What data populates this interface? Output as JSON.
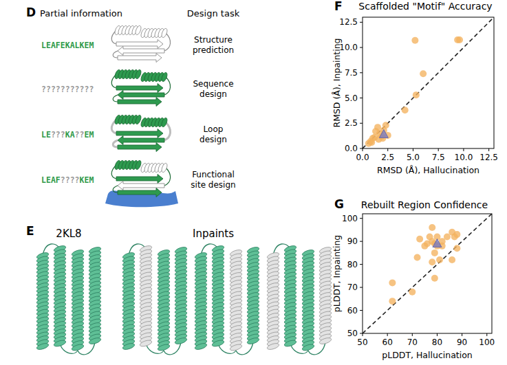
{
  "panel_d": {
    "label": "D",
    "headers": [
      "Partial information",
      "Design task"
    ],
    "rows": [
      {
        "sequence": "LEAFEKALKEM",
        "task": "Structure prediction"
      },
      {
        "sequence": "???????????",
        "task": "Sequence design"
      },
      {
        "sequence": "LE???KA??EM",
        "task": "Loop design"
      },
      {
        "sequence": "LEAF????KEM",
        "task": "Functional site design"
      }
    ]
  },
  "panel_e": {
    "label": "E",
    "native": "2KL8",
    "inpaints": "Inpaints"
  },
  "chart_data": [
    {
      "panel": "F",
      "type": "scatter",
      "title": "Scaffolded \"Motif\" Accuracy",
      "x_label": "RMSD (Å), Hallucination",
      "y_label": "RMSD (Å), Inpainting",
      "xlim": [
        0,
        13
      ],
      "ylim": [
        0,
        13
      ],
      "xticks": [
        {
          "value": 0,
          "label": "0.0"
        },
        {
          "value": 2.5,
          "label": "2.5"
        },
        {
          "value": 5,
          "label": "5.0"
        },
        {
          "value": 7.5,
          "label": "7.5"
        },
        {
          "value": 10,
          "label": "10.0"
        },
        {
          "value": 12.5,
          "label": "12.5"
        }
      ],
      "yticks": [
        {
          "value": 0,
          "label": "0.0"
        },
        {
          "value": 2.5,
          "label": "2.5"
        },
        {
          "value": 5,
          "label": "5.0"
        },
        {
          "value": 7.5,
          "label": "7.5"
        },
        {
          "value": 10,
          "label": "10.0"
        },
        {
          "value": 12.5,
          "label": "12.5"
        }
      ],
      "grid": false,
      "series": [
        {
          "color": "#f3b25f",
          "marker": "circle",
          "x": [
            5.2,
            9.4,
            9.6,
            6.0,
            5.3,
            4.2,
            2.3,
            2.5,
            1.5,
            1.3,
            1.7,
            1.0,
            0.6,
            0.8,
            1.9,
            2.1,
            1.2,
            1.6,
            0.9,
            2.0
          ],
          "values": [
            10.7,
            10.75,
            10.75,
            7.4,
            5.3,
            3.8,
            2.3,
            1.3,
            2.1,
            1.7,
            1.5,
            1.0,
            0.5,
            0.7,
            1.2,
            1.8,
            1.1,
            0.9,
            0.6,
            1.0
          ]
        },
        {
          "color": "#7679c2",
          "marker": "triangle",
          "x": [
            2.1
          ],
          "values": [
            1.4
          ]
        }
      ]
    },
    {
      "panel": "G",
      "type": "scatter",
      "title": "Rebuilt Region Confidence",
      "x_label": "pLDDT, Hallucination",
      "y_label": "pLDDT, Inpainting",
      "xlim": [
        50,
        102
      ],
      "ylim": [
        50,
        102
      ],
      "xticks": [
        50,
        60,
        70,
        80,
        90,
        100
      ],
      "yticks": [
        50,
        60,
        70,
        80,
        90,
        100
      ],
      "grid": false,
      "series": [
        {
          "color": "#f3b25f",
          "marker": "circle",
          "x": [
            62,
            62,
            70,
            72,
            73,
            75,
            76,
            77,
            78,
            78,
            79,
            78,
            79,
            80,
            80,
            81,
            82,
            82,
            84,
            86,
            86,
            87,
            88,
            88,
            79
          ],
          "values": [
            72,
            64,
            68,
            83,
            91,
            88,
            89,
            92,
            96,
            90,
            89,
            81,
            74,
            92,
            88,
            82,
            90,
            88,
            92,
            94,
            82,
            92,
            93,
            87,
            85
          ]
        },
        {
          "color": "#7679c2",
          "marker": "triangle",
          "x": [
            80
          ],
          "values": [
            89
          ]
        }
      ]
    }
  ]
}
